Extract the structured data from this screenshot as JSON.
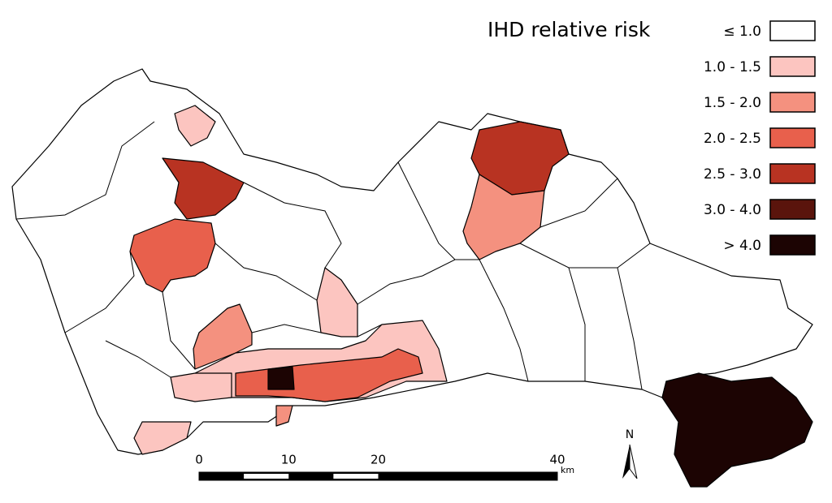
{
  "legend": {
    "title": "IHD relative risk",
    "items": [
      {
        "label": "≤ 1.0",
        "color": "#ffffff"
      },
      {
        "label": "1.0 - 1.5",
        "color": "#fcc5c0"
      },
      {
        "label": "1.5 - 2.0",
        "color": "#f4917f"
      },
      {
        "label": "2.0 - 2.5",
        "color": "#e8604c"
      },
      {
        "label": "2.5 - 3.0",
        "color": "#b83322"
      },
      {
        "label": "3.0 - 4.0",
        "color": "#5a140c"
      },
      {
        "label": "> 4.0",
        "color": "#1c0403"
      }
    ]
  },
  "scale_bar": {
    "ticks": [
      0,
      10,
      20,
      40
    ],
    "unit": "km"
  },
  "north_arrow": "N"
}
